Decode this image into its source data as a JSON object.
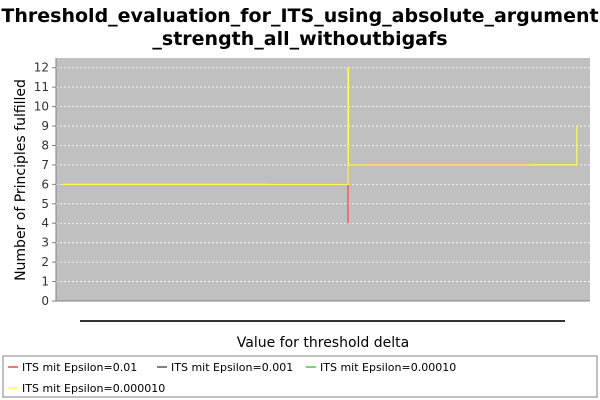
{
  "chart_data": {
    "type": "line",
    "title_lines": [
      "Threshold_evaluation_for_ITS_using_absolute_argument",
      "_strength_all_withoutbigafs"
    ],
    "xlabel": "Value for threshold delta",
    "ylabel": "Number of Principles fulfilled",
    "ylim": [
      0,
      12.5
    ],
    "y_ticks": [
      "0",
      "1",
      "2",
      "3",
      "4",
      "5",
      "6",
      "7",
      "8",
      "9",
      "10",
      "11",
      "12"
    ],
    "x_tick_labels": [],
    "grid": true,
    "legend_position": "bottom",
    "xlim": [
      0,
      1
    ],
    "series": [
      {
        "name": "ITS mit Epsilon=0.01",
        "color": "#ff4444",
        "points": [
          [
            0.4,
            6
          ],
          [
            0.55,
            6
          ],
          [
            0.55,
            4
          ],
          [
            0.55,
            8
          ],
          [
            0.551,
            8
          ],
          [
            0.551,
            7
          ],
          [
            0.9,
            7
          ]
        ]
      },
      {
        "name": "ITS mit Epsilon=0.001",
        "color": "#555555",
        "points": []
      },
      {
        "name": "ITS mit Epsilon=0.00010",
        "color": "#44cc44",
        "points": []
      },
      {
        "name": "ITS mit Epsilon=0.000010",
        "color": "#ffff44",
        "points": [
          [
            0,
            6
          ],
          [
            0.55,
            6
          ],
          [
            0.55,
            12
          ],
          [
            0.551,
            12
          ],
          [
            0.551,
            7
          ],
          [
            0.99,
            7
          ],
          [
            0.99,
            9
          ]
        ]
      }
    ]
  }
}
